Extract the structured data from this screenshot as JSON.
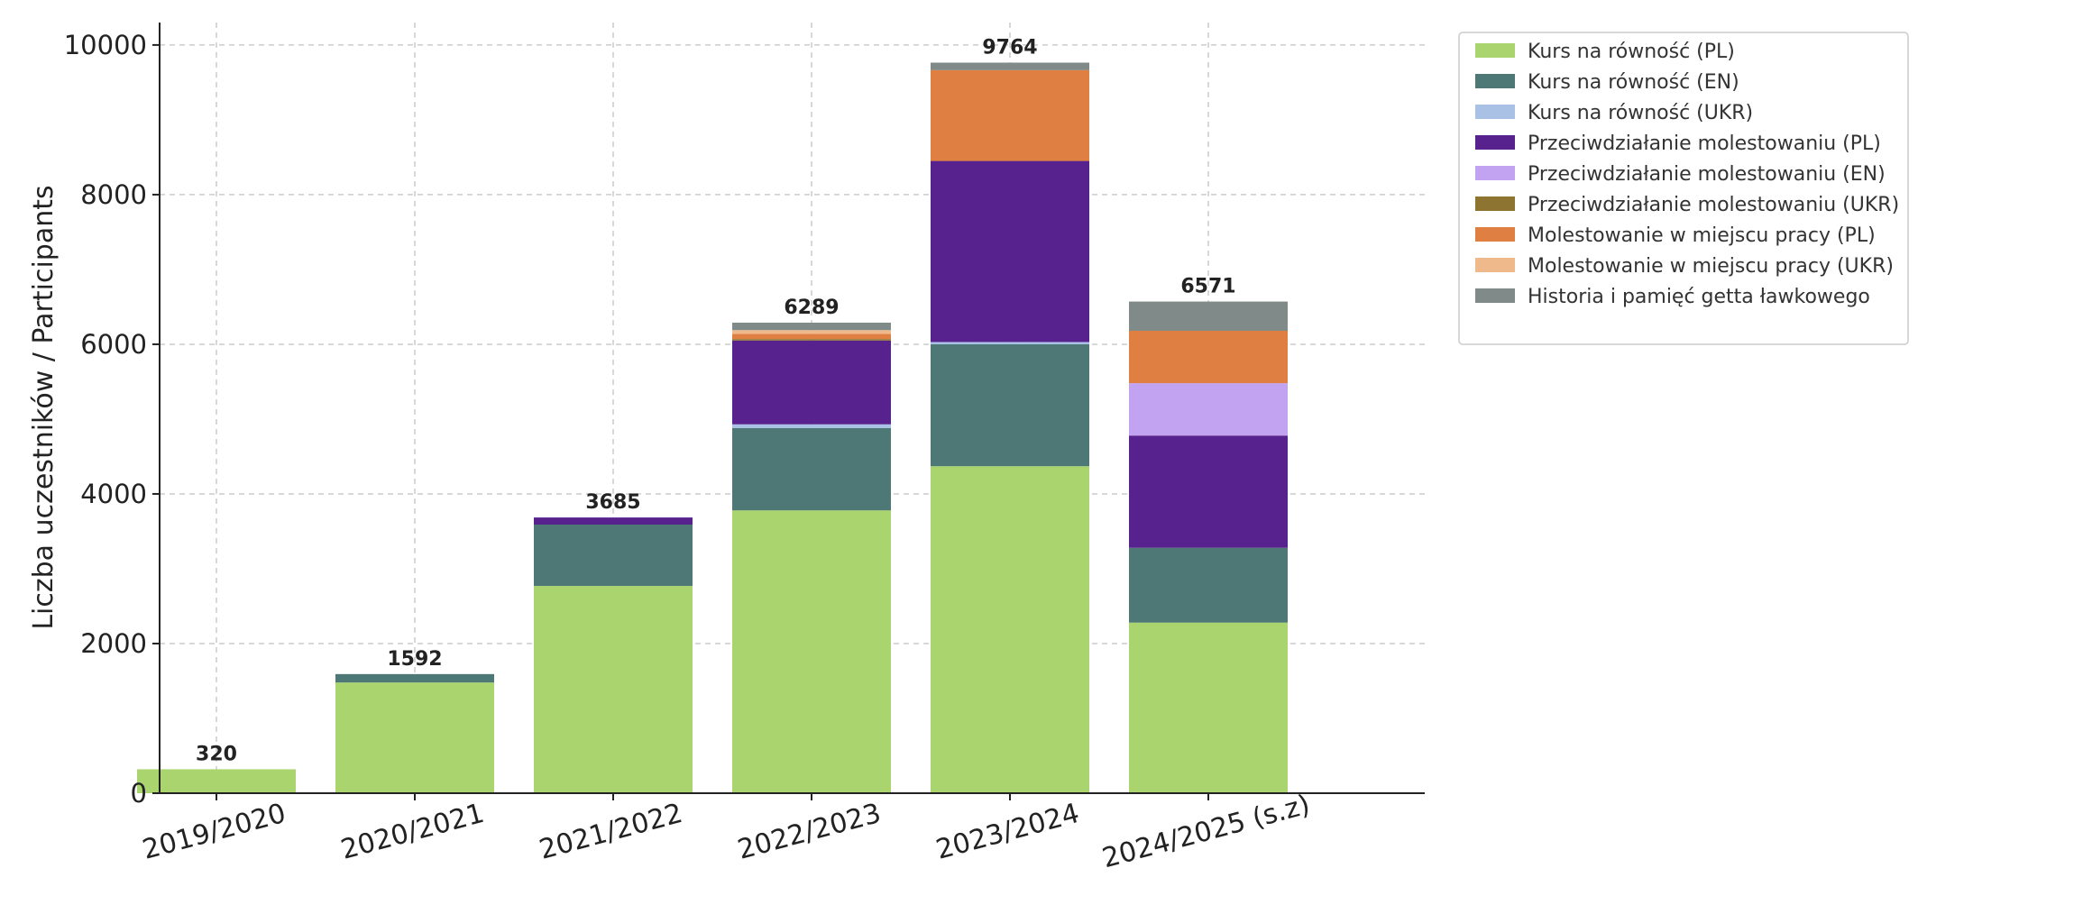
{
  "chart_data": {
    "type": "bar",
    "stacked": true,
    "title": "",
    "xlabel": "",
    "ylabel": "Liczba uczestników / Participants",
    "ylim": [
      0,
      10300
    ],
    "yticks": [
      0,
      2000,
      4000,
      6000,
      8000,
      10000
    ],
    "grid": true,
    "legend_position": "top-right",
    "categories": [
      "2019/2020",
      "2020/2021",
      "2021/2022",
      "2022/2023",
      "2023/2024",
      "2024/2025 (s.z)"
    ],
    "totals": [
      320,
      1592,
      3685,
      6289,
      9764,
      6571
    ],
    "series": [
      {
        "name": "Kurs na równość (PL)",
        "color": "#aad46e",
        "values": [
          320,
          1480,
          2770,
          3780,
          4370,
          2280
        ]
      },
      {
        "name": "Kurs na równość (EN)",
        "color": "#4e7876",
        "values": [
          0,
          112,
          820,
          1100,
          1630,
          1000
        ]
      },
      {
        "name": "Kurs na równość (UKR)",
        "color": "#a9c1e4",
        "values": [
          0,
          0,
          0,
          50,
          30,
          0
        ]
      },
      {
        "name": "Przeciwdziałanie molestowaniu (PL)",
        "color": "#58228e",
        "values": [
          0,
          0,
          95,
          1120,
          2420,
          1500
        ]
      },
      {
        "name": "Przeciwdziałanie molestowaniu (EN)",
        "color": "#c1a3f2",
        "values": [
          0,
          0,
          0,
          0,
          0,
          700
        ]
      },
      {
        "name": "Przeciwdziałanie molestowaniu (UKR)",
        "color": "#8d7430",
        "values": [
          0,
          0,
          0,
          20,
          0,
          0
        ]
      },
      {
        "name": "Molestowanie w miejscu pracy (PL)",
        "color": "#e07f42",
        "values": [
          0,
          0,
          0,
          70,
          1214,
          700
        ]
      },
      {
        "name": "Molestowanie w miejscu pracy (UKR)",
        "color": "#f0b98b",
        "values": [
          0,
          0,
          0,
          49,
          0,
          0
        ]
      },
      {
        "name": "Historia i pamięć getta ławkowego",
        "color": "#7f8a89",
        "values": [
          0,
          0,
          0,
          100,
          100,
          391
        ]
      }
    ]
  }
}
